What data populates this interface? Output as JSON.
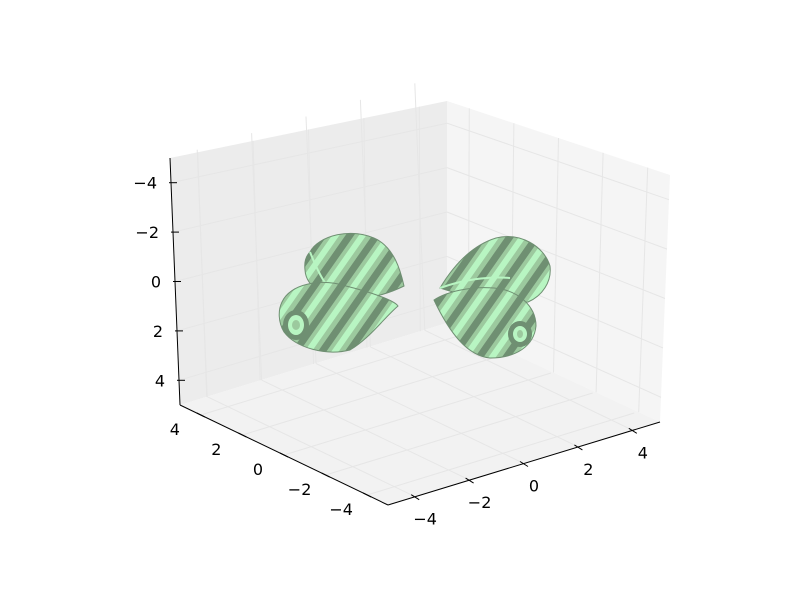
{
  "chart_data": {
    "type": "surface3d",
    "title": "",
    "xlabel": "",
    "ylabel": "",
    "zlabel": "",
    "grid": true,
    "axes": {
      "x": {
        "ticks": [
          -4,
          -2,
          0,
          2,
          4
        ],
        "tick_labels": [
          "−4",
          "−2",
          "0",
          "2",
          "4"
        ],
        "lim": [
          -5,
          5
        ]
      },
      "y": {
        "ticks": [
          -4,
          -2,
          0,
          2,
          4
        ],
        "tick_labels": [
          "−4",
          "−2",
          "0",
          "2",
          "4"
        ],
        "lim": [
          -5,
          5
        ]
      },
      "z": {
        "ticks": [
          -4,
          -2,
          0,
          2,
          4
        ],
        "tick_labels": [
          "−4",
          "−2",
          "0",
          "2",
          "4"
        ],
        "lim": [
          -5,
          5
        ],
        "inverted": true
      }
    },
    "surfaces": [
      {
        "name": "",
        "center": [
          -2,
          2,
          -1
        ],
        "shape": "teardrop"
      },
      {
        "name": "",
        "center": [
          -2,
          2,
          1
        ],
        "shape": "teardrop"
      },
      {
        "name": "",
        "center": [
          2,
          -2,
          -1
        ],
        "shape": "teardrop"
      },
      {
        "name": "",
        "center": [
          2,
          -2,
          1
        ],
        "shape": "teardrop"
      }
    ],
    "colors": {
      "light": "#b8f5c2",
      "mid": "#9cc99e",
      "dark": "#6f8f72",
      "pane_back": "#ececec",
      "pane_side": "#f5f5f5",
      "pane_floor": "#f2f2f2"
    }
  }
}
